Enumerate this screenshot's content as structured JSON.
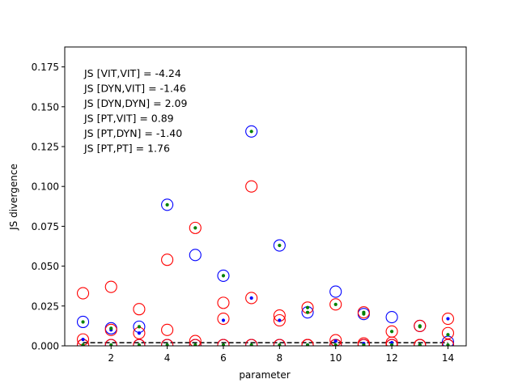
{
  "chart_data": {
    "type": "scatter",
    "title": "",
    "xlabel": "parameter",
    "ylabel": "JS divergence",
    "xlim": [
      0.35,
      14.65
    ],
    "ylim": [
      0,
      0.1875
    ],
    "x_ticks": [
      2,
      4,
      6,
      8,
      10,
      12,
      14
    ],
    "x_tick_labels": [
      "2",
      "4",
      "6",
      "8",
      "10",
      "12",
      "14"
    ],
    "y_ticks": [
      0,
      0.025,
      0.05,
      0.075,
      0.1,
      0.125,
      0.15,
      0.175
    ],
    "y_tick_labels": [
      "0.000",
      "0.025",
      "0.050",
      "0.075",
      "0.100",
      "0.125",
      "0.150",
      "0.175"
    ],
    "grid": false,
    "legend": null,
    "annotations": [
      "JS [VIT,VIT] = -4.24",
      "JS [DYN,VIT] = -1.46",
      "JS [DYN,DYN] = 2.09",
      "JS [PT,VIT] = 0.89",
      "JS [PT,DYN] = -1.40",
      "JS [PT,PT] = 1.76"
    ],
    "reference_line": {
      "y": 0.002,
      "style": "dashed",
      "color": "#000000"
    },
    "series": [
      {
        "marker": "circle-open",
        "color": "#0000ff",
        "x": [
          1,
          2,
          3,
          4,
          5,
          6,
          7,
          8,
          9,
          10,
          11,
          12,
          13,
          14,
          1,
          2,
          3,
          4,
          5,
          6,
          7,
          8,
          9,
          10,
          11,
          12,
          13,
          14
        ],
        "y": [
          0.015,
          0.011,
          0.012,
          0.0885,
          0.057,
          0.044,
          0.1345,
          0.063,
          0.021,
          0.034,
          0.02,
          0.018,
          0.0125,
          0.0025,
          0.0005,
          0.0005,
          0.0005,
          0.0005,
          0.0005,
          0.0005,
          0.0005,
          0.0005,
          0.0005,
          0.0005,
          0.0005,
          0.0005,
          0.0005,
          0.0005
        ]
      },
      {
        "marker": "circle-open",
        "color": "#ff0000",
        "x": [
          1,
          2,
          3,
          4,
          5,
          6,
          7,
          8,
          9,
          10,
          11,
          12,
          13,
          14,
          1,
          2,
          3,
          4,
          5,
          6,
          7,
          8,
          9,
          10,
          11,
          12,
          13,
          14,
          1,
          2,
          3,
          4,
          5,
          6,
          7,
          8,
          9,
          10,
          11,
          12,
          13,
          14
        ],
        "y": [
          0.033,
          0.037,
          0.023,
          0.054,
          0.074,
          0.027,
          0.1,
          0.019,
          0.024,
          0.026,
          0.021,
          0.009,
          0.0125,
          0.017,
          0.004,
          0.01,
          0.008,
          0.01,
          0.003,
          0.017,
          0.03,
          0.016,
          0.0005,
          0.0035,
          0.0015,
          0.002,
          0.0005,
          0.008,
          0.0005,
          0.0005,
          0.0005,
          0.0005,
          0.0005,
          0.0005,
          0.0005,
          0.0005,
          0.0005,
          0.0005,
          0.0005,
          0.0005,
          0.0005,
          0.0005
        ]
      },
      {
        "marker": "dot",
        "color": "#0000ff",
        "x": [
          1,
          2,
          3,
          6,
          7,
          8,
          9,
          10,
          11,
          12,
          13,
          14
        ],
        "y": [
          0.004,
          0.01,
          0.008,
          0.016,
          0.03,
          0.016,
          0.0005,
          0.003,
          0.0015,
          0.002,
          0.0005,
          0.017
        ]
      },
      {
        "marker": "dot",
        "color": "#008000",
        "x": [
          1,
          2,
          3,
          4,
          5,
          6,
          7,
          8,
          9,
          10,
          11,
          12,
          13,
          14,
          1,
          2,
          3,
          4,
          5,
          6,
          7,
          8,
          9,
          10,
          11,
          12,
          13,
          14,
          9,
          11,
          13
        ],
        "y": [
          0.015,
          0.011,
          0.012,
          0.0885,
          0.074,
          0.044,
          0.1345,
          0.063,
          0.021,
          0.026,
          0.02,
          0.009,
          0.0125,
          0.007,
          0.0005,
          0.0005,
          0.0005,
          0.0005,
          0.0005,
          0.0005,
          0.0005,
          0.0005,
          0.0005,
          0.0005,
          0.0005,
          0.0005,
          0.0005,
          0.0005,
          0.024,
          0.021,
          0.012
        ]
      }
    ]
  }
}
